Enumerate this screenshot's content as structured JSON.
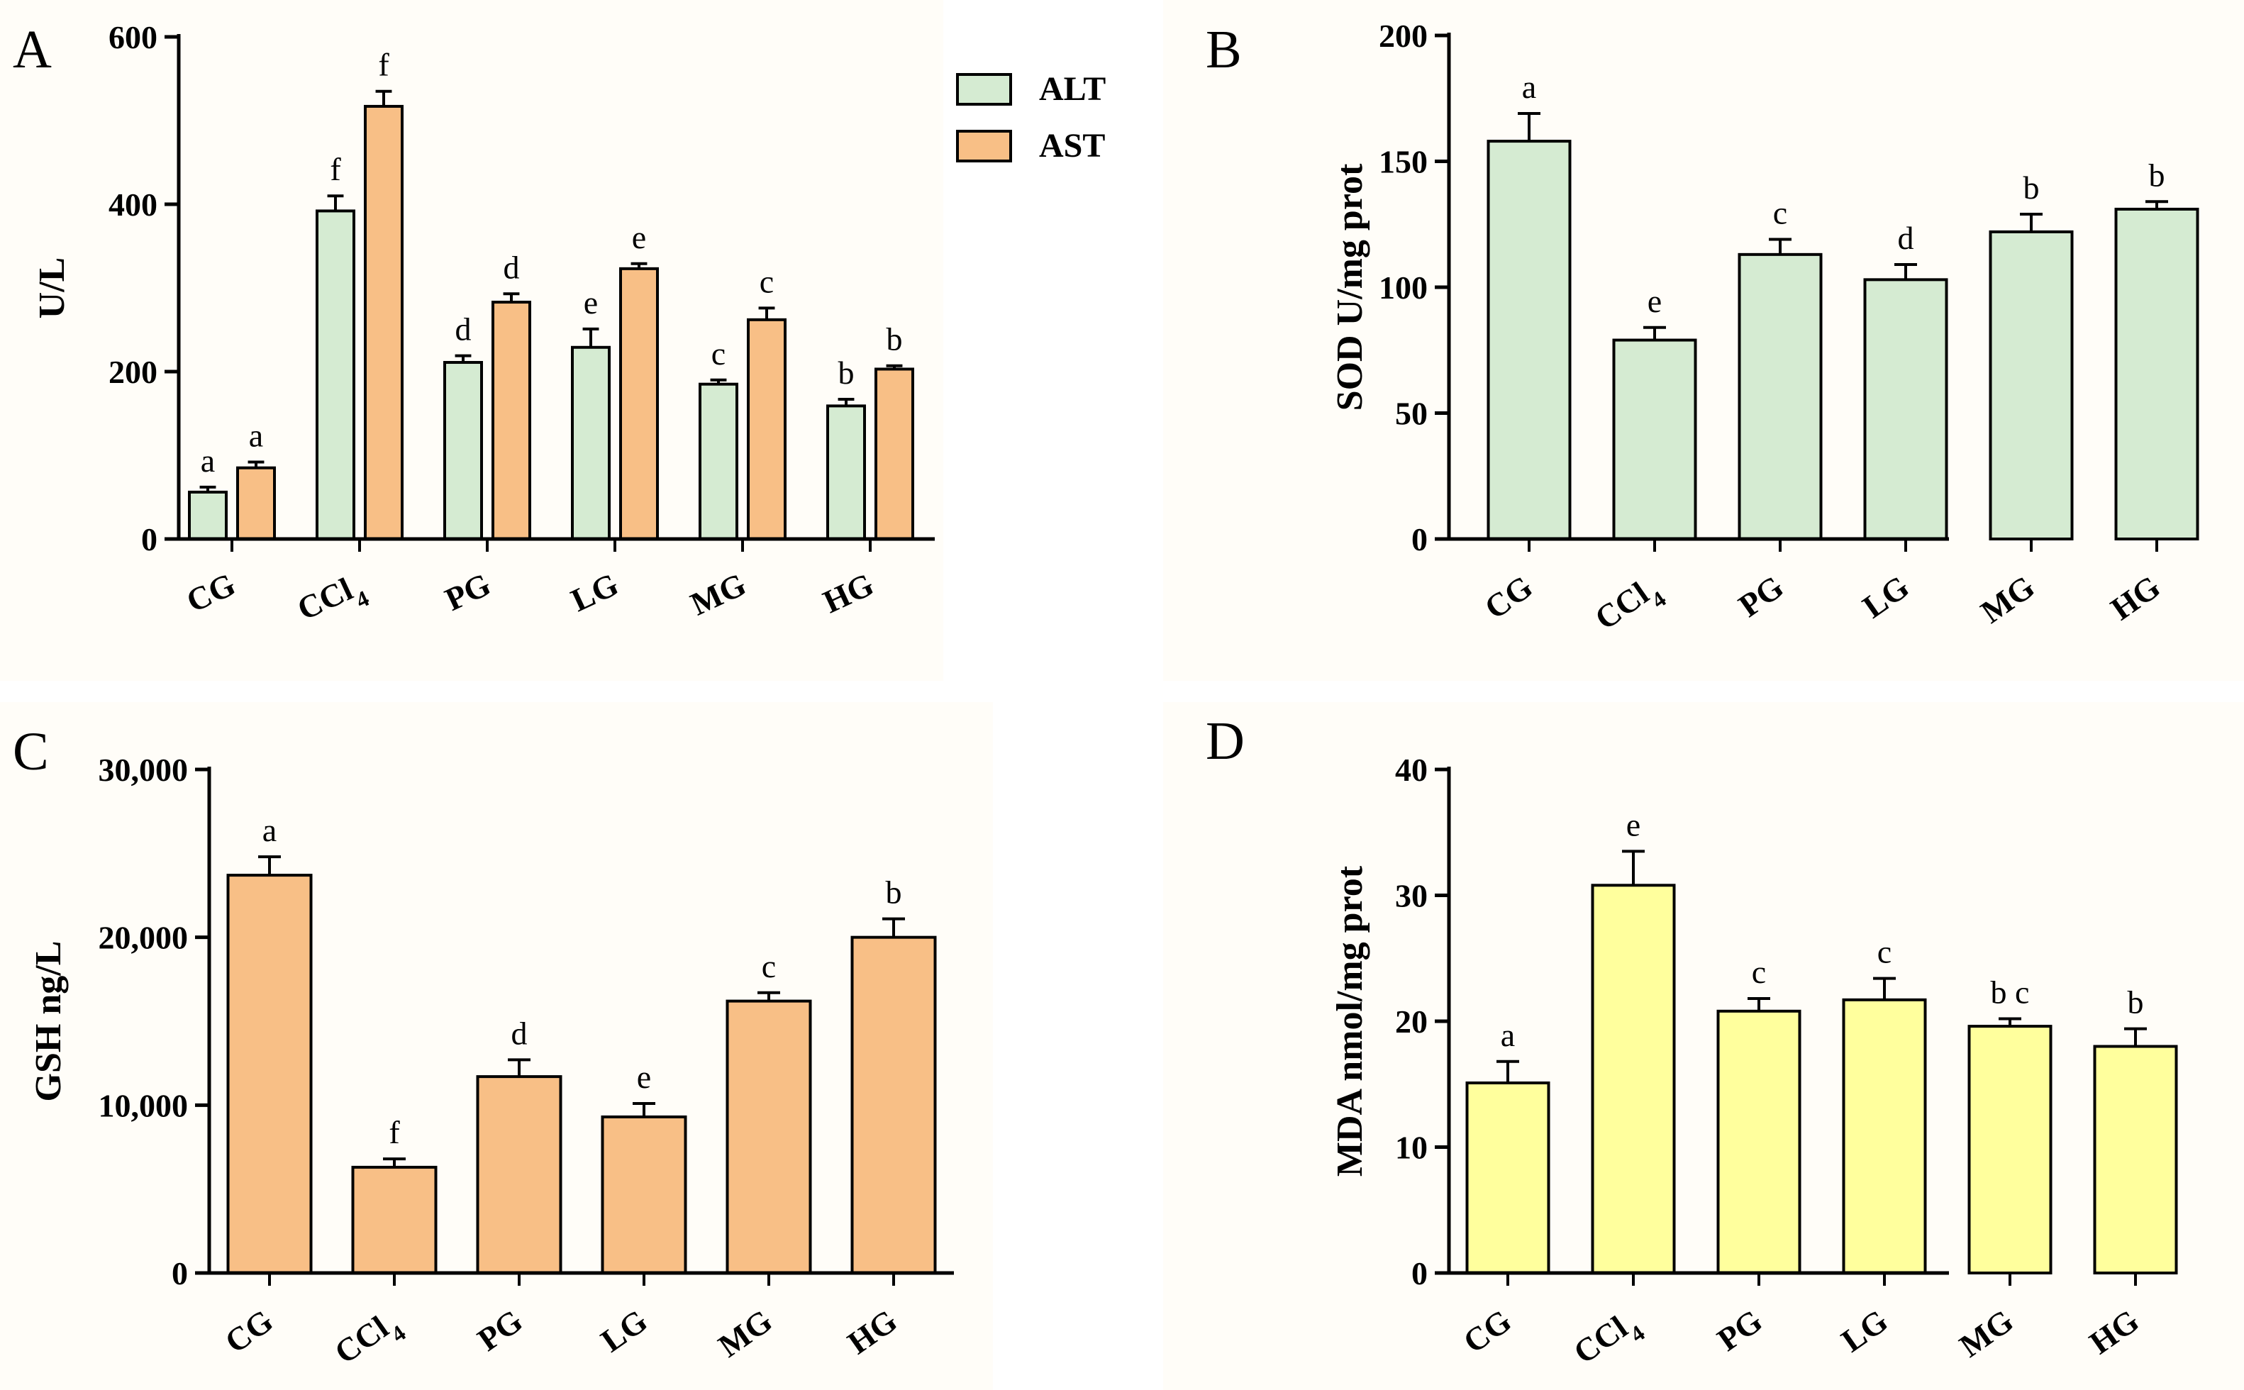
{
  "figure": {
    "colors": {
      "alt": "#d5ebd2",
      "ast": "#f8bf86",
      "sod": "#d5ebd2",
      "gsh": "#f8bf86",
      "mda": "#ffff9d",
      "stroke": "#000000"
    }
  },
  "chart_data": [
    {
      "panel": "A",
      "type": "bar",
      "ylabel": "U/L",
      "ylim": [
        0,
        600
      ],
      "yticks": [
        "0",
        "200",
        "400",
        "600"
      ],
      "categories": [
        "CG",
        "CCl4",
        "PG",
        "LG",
        "MG",
        "HG"
      ],
      "category_labels": [
        {
          "main": "CG",
          "sub": ""
        },
        {
          "main": "CCl",
          "sub": "4"
        },
        {
          "main": "PG",
          "sub": ""
        },
        {
          "main": "LG",
          "sub": ""
        },
        {
          "main": "MG",
          "sub": ""
        },
        {
          "main": "HG",
          "sub": ""
        }
      ],
      "series": [
        {
          "name": "ALT",
          "color": "#d5ebd2",
          "values": [
            56,
            392,
            211,
            229,
            185,
            159
          ],
          "errors": [
            6,
            18,
            8,
            22,
            5,
            8
          ],
          "letters": [
            "a",
            "f",
            "d",
            "e",
            "c",
            "b"
          ]
        },
        {
          "name": "AST",
          "color": "#f8bf86",
          "values": [
            85,
            517,
            283,
            323,
            262,
            203
          ],
          "errors": [
            7,
            18,
            10,
            6,
            14,
            4
          ],
          "letters": [
            "a",
            "f",
            "d",
            "e",
            "c",
            "b"
          ]
        }
      ],
      "legend": {
        "position": "top-right",
        "entries": [
          "ALT",
          "AST"
        ]
      }
    },
    {
      "panel": "B",
      "type": "bar",
      "ylabel": "SOD U/mg prot",
      "ylim": [
        0,
        200
      ],
      "yticks": [
        "0",
        "50",
        "100",
        "150",
        "200"
      ],
      "categories": [
        "CG",
        "CCl4",
        "PG",
        "LG",
        "MG",
        "HG"
      ],
      "category_labels": [
        {
          "main": "CG",
          "sub": ""
        },
        {
          "main": "CCl",
          "sub": "4"
        },
        {
          "main": "PG",
          "sub": ""
        },
        {
          "main": "LG",
          "sub": ""
        },
        {
          "main": "MG",
          "sub": ""
        },
        {
          "main": "HG",
          "sub": ""
        }
      ],
      "series": [
        {
          "name": "SOD",
          "color": "#d5ebd2",
          "values": [
            158,
            79,
            113,
            103,
            122,
            131
          ],
          "errors": [
            11,
            5,
            6,
            6,
            7,
            3
          ],
          "letters": [
            "a",
            "e",
            "c",
            "d",
            "b",
            "b"
          ]
        }
      ]
    },
    {
      "panel": "C",
      "type": "bar",
      "ylabel": "GSH ng/L",
      "ylim": [
        0,
        30000
      ],
      "yticks": [
        "0",
        "10,000",
        "20,000",
        "30,000"
      ],
      "categories": [
        "CG",
        "CCl4",
        "PG",
        "LG",
        "MG",
        "HG"
      ],
      "category_labels": [
        {
          "main": "CG",
          "sub": ""
        },
        {
          "main": "CCl",
          "sub": "4"
        },
        {
          "main": "PG",
          "sub": ""
        },
        {
          "main": "LG",
          "sub": ""
        },
        {
          "main": "MG",
          "sub": ""
        },
        {
          "main": "HG",
          "sub": ""
        }
      ],
      "series": [
        {
          "name": "GSH",
          "color": "#f8bf86",
          "values": [
            23700,
            6300,
            11700,
            9300,
            16200,
            20000
          ],
          "errors": [
            1100,
            500,
            1000,
            800,
            500,
            1100
          ],
          "letters": [
            "a",
            "f",
            "d",
            "e",
            "c",
            "b"
          ]
        }
      ]
    },
    {
      "panel": "D",
      "type": "bar",
      "ylabel": "MDA nmol/mg prot",
      "ylim": [
        0,
        40
      ],
      "yticks": [
        "0",
        "10",
        "20",
        "30",
        "40"
      ],
      "categories": [
        "CG",
        "CCl4",
        "PG",
        "LG",
        "MG",
        "HG"
      ],
      "category_labels": [
        {
          "main": "CG",
          "sub": ""
        },
        {
          "main": "CCl",
          "sub": "4"
        },
        {
          "main": "PG",
          "sub": ""
        },
        {
          "main": "LG",
          "sub": ""
        },
        {
          "main": "MG",
          "sub": ""
        },
        {
          "main": "HG",
          "sub": ""
        }
      ],
      "series": [
        {
          "name": "MDA",
          "color": "#ffff9d",
          "values": [
            15.1,
            30.8,
            20.8,
            21.7,
            19.6,
            18.0
          ],
          "errors": [
            1.7,
            2.7,
            1.0,
            1.7,
            0.6,
            1.4
          ],
          "letters": [
            "a",
            "e",
            "c",
            "c",
            "b c",
            "b"
          ]
        }
      ]
    }
  ]
}
